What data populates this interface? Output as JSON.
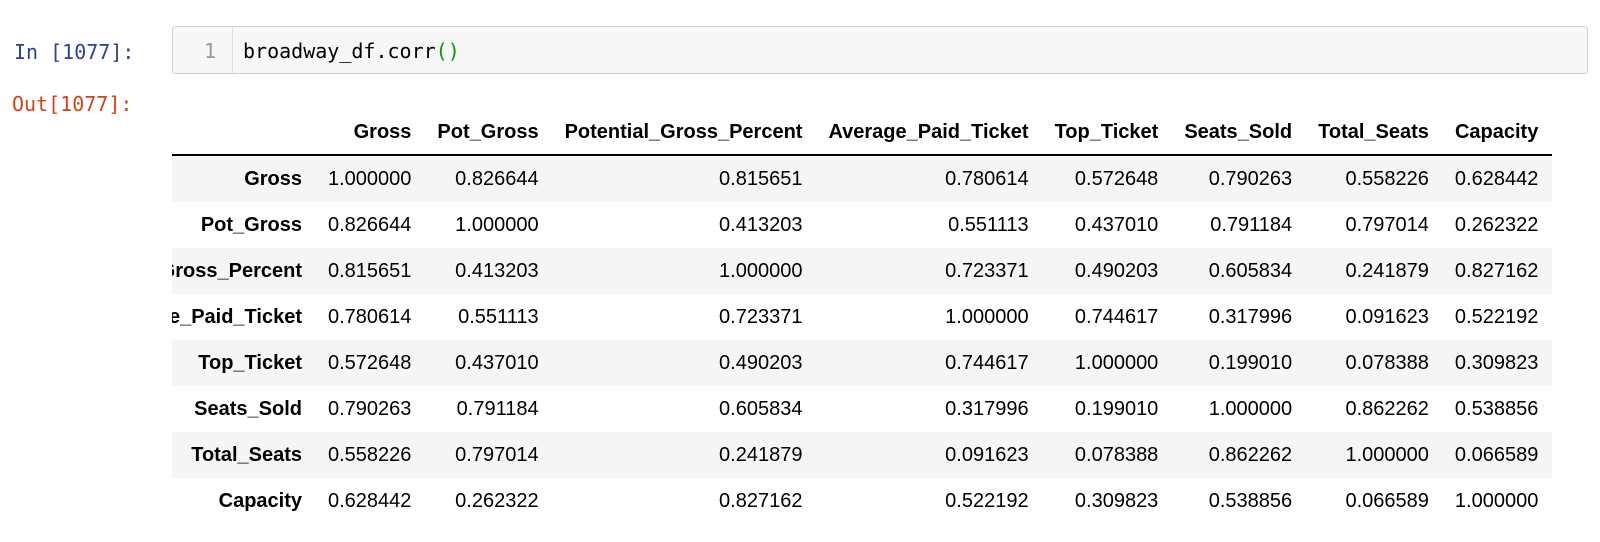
{
  "notebook": {
    "in_prompt": "In [1077]:",
    "out_prompt": "Out[1077]:",
    "line_number": "1",
    "code_text": "broadway_df.corr",
    "code_parens": "()"
  },
  "table": {
    "columns": [
      "Gross",
      "Pot_Gross",
      "Potential_Gross_Percent",
      "Average_Paid_Ticket",
      "Top_Ticket",
      "Seats_Sold",
      "Total_Seats",
      "Capacity"
    ],
    "rows": [
      {
        "label": "Gross",
        "values": [
          "1.000000",
          "0.826644",
          "0.815651",
          "0.780614",
          "0.572648",
          "0.790263",
          "0.558226",
          "0.628442"
        ]
      },
      {
        "label": "Pot_Gross",
        "values": [
          "0.826644",
          "1.000000",
          "0.413203",
          "0.551113",
          "0.437010",
          "0.791184",
          "0.797014",
          "0.262322"
        ]
      },
      {
        "label": "Potential_Gross_Percent",
        "values": [
          "0.815651",
          "0.413203",
          "1.000000",
          "0.723371",
          "0.490203",
          "0.605834",
          "0.241879",
          "0.827162"
        ]
      },
      {
        "label": "Average_Paid_Ticket",
        "values": [
          "0.780614",
          "0.551113",
          "0.723371",
          "1.000000",
          "0.744617",
          "0.317996",
          "0.091623",
          "0.522192"
        ]
      },
      {
        "label": "Top_Ticket",
        "values": [
          "0.572648",
          "0.437010",
          "0.490203",
          "0.744617",
          "1.000000",
          "0.199010",
          "0.078388",
          "0.309823"
        ]
      },
      {
        "label": "Seats_Sold",
        "values": [
          "0.790263",
          "0.791184",
          "0.605834",
          "0.317996",
          "0.199010",
          "1.000000",
          "0.862262",
          "0.538856"
        ]
      },
      {
        "label": "Total_Seats",
        "values": [
          "0.558226",
          "0.797014",
          "0.241879",
          "0.091623",
          "0.078388",
          "0.862262",
          "1.000000",
          "0.066589"
        ]
      },
      {
        "label": "Capacity",
        "values": [
          "0.628442",
          "0.262322",
          "0.827162",
          "0.522192",
          "0.309823",
          "0.538856",
          "0.066589",
          "1.000000"
        ]
      }
    ]
  }
}
